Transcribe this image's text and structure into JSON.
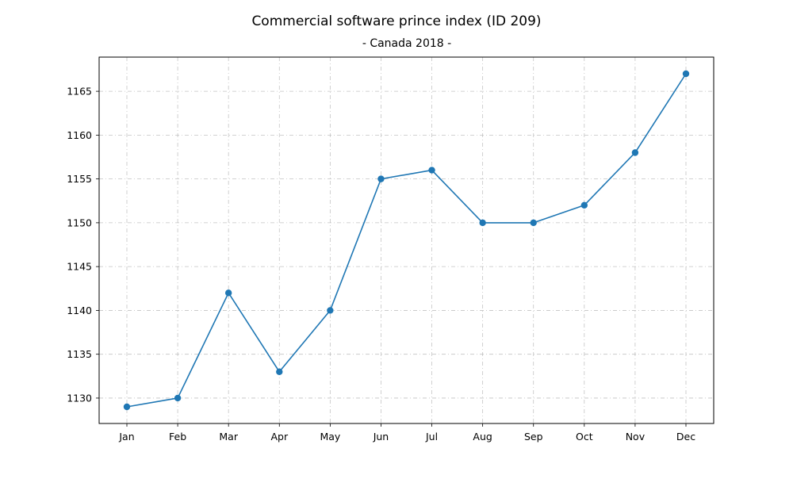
{
  "chart_data": {
    "type": "line",
    "title": "Commercial software prince index (ID 209)",
    "subtitle": "- Canada 2018 -",
    "xlabel": "",
    "ylabel": "",
    "categories": [
      "Jan",
      "Feb",
      "Mar",
      "Apr",
      "May",
      "Jun",
      "Jul",
      "Aug",
      "Sep",
      "Oct",
      "Nov",
      "Dec"
    ],
    "series": [
      {
        "values": [
          1129,
          1130,
          1142,
          1133,
          1140,
          1155,
          1156,
          1150,
          1150,
          1152,
          1158,
          1167
        ],
        "color": "#1f77b4",
        "marker": "circle"
      }
    ],
    "yticks": [
      1130,
      1135,
      1140,
      1145,
      1150,
      1155,
      1160,
      1165
    ],
    "ylim": [
      1127.1,
      1168.9
    ],
    "grid": true,
    "legend": "none"
  }
}
